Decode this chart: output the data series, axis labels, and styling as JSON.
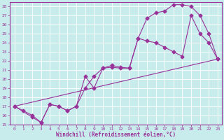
{
  "xlabel": "Windchill (Refroidissement éolien,°C)",
  "bg_color": "#c8ecec",
  "line_color": "#993399",
  "grid_color": "#ffffff",
  "xlim": [
    -0.5,
    23.5
  ],
  "ylim": [
    15,
    28.5
  ],
  "yticks": [
    15,
    16,
    17,
    18,
    19,
    20,
    21,
    22,
    23,
    24,
    25,
    26,
    27,
    28
  ],
  "xticks": [
    0,
    1,
    2,
    3,
    4,
    5,
    6,
    7,
    8,
    9,
    10,
    11,
    12,
    13,
    14,
    15,
    16,
    17,
    18,
    19,
    20,
    21,
    22,
    23
  ],
  "line1_x": [
    0,
    1,
    2,
    3,
    4,
    5,
    6,
    7,
    8,
    9,
    10,
    11,
    12,
    13,
    14,
    15,
    16,
    17,
    18,
    19,
    20,
    21,
    22,
    23
  ],
  "line1_y": [
    17.0,
    16.5,
    16.0,
    15.2,
    17.2,
    17.0,
    16.5,
    17.0,
    19.0,
    20.3,
    21.2,
    21.3,
    21.2,
    21.2,
    24.5,
    26.7,
    27.3,
    27.5,
    28.2,
    28.2,
    28.0,
    27.0,
    25.0,
    22.2
  ],
  "line2_x": [
    0,
    2,
    3,
    4,
    5,
    6,
    7,
    8,
    9,
    10,
    11,
    12,
    13,
    14,
    15,
    16,
    17,
    18,
    19,
    20,
    21,
    22,
    23
  ],
  "line2_y": [
    17.0,
    15.8,
    15.2,
    17.2,
    17.0,
    16.5,
    17.0,
    20.3,
    19.0,
    21.2,
    21.5,
    21.3,
    21.2,
    24.5,
    24.2,
    24.0,
    23.5,
    23.0,
    22.5,
    27.0,
    25.0,
    24.0,
    22.2
  ],
  "line3_x": [
    0,
    23
  ],
  "line3_y": [
    17.0,
    22.2
  ],
  "marker": "D",
  "markersize": 2.5,
  "linewidth": 0.8
}
